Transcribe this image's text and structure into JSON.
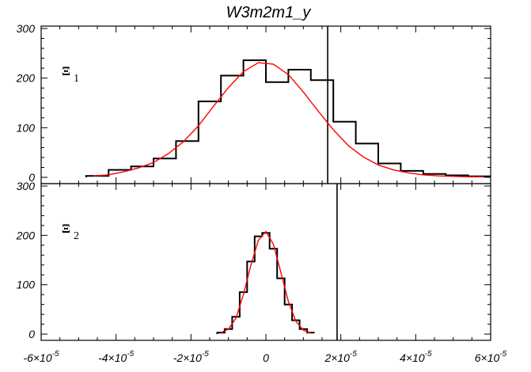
{
  "chart_data": {
    "type": "line",
    "title": "W3m2m1_y",
    "x_scale": "1e-5",
    "xlim": [
      -6,
      6
    ],
    "x_tick_labels": [
      "-6×10",
      "-4×10",
      "-2×10",
      "0",
      "2×10",
      "4×10",
      "6×10"
    ],
    "x_tick_exponent": "-5",
    "panels": [
      {
        "label": "Ξ",
        "subscript": "1",
        "ylim": [
          0,
          300
        ],
        "y_tick_labels": [
          "0",
          "100",
          "200",
          "300"
        ],
        "vline_x": 1.65,
        "series": [
          {
            "color": "#000000",
            "kind": "histogram",
            "step": 0.6,
            "x": [
              -4.5,
              -3.9,
              -3.3,
              -2.7,
              -2.1,
              -1.5,
              -0.9,
              -0.3,
              0.3,
              0.9,
              1.5,
              2.1,
              2.7,
              3.3,
              3.9,
              4.5,
              5.1,
              5.7
            ],
            "values": [
              3,
              15,
              22,
              38,
              73,
              153,
              205,
              236,
              192,
              217,
              196,
              112,
              68,
              28,
              13,
              7,
              4,
              2
            ]
          },
          {
            "color": "#ff0000",
            "kind": "curve",
            "x": [
              -4.6,
              -4.2,
              -3.8,
              -3.4,
              -3.0,
              -2.6,
              -2.2,
              -1.8,
              -1.4,
              -1.0,
              -0.6,
              -0.2,
              0.2,
              0.6,
              1.0,
              1.4,
              1.8,
              2.2,
              2.6,
              3.0,
              3.4,
              3.8,
              4.2,
              4.6,
              5.0,
              5.4,
              5.8
            ],
            "values": [
              3,
              5,
              11,
              19,
              30,
              48,
              72,
              104,
              143,
              181,
              213,
              231,
              228,
              207,
              172,
              133,
              96,
              64,
              41,
              25,
              15,
              9,
              5,
              3,
              2,
              1,
              1
            ]
          }
        ]
      },
      {
        "label": "Ξ",
        "subscript": "2",
        "ylim": [
          0,
          300
        ],
        "y_tick_labels": [
          "0",
          "100",
          "200",
          "300"
        ],
        "vline_x": 1.9,
        "series": [
          {
            "color": "#000000",
            "kind": "histogram",
            "step": 0.2,
            "x": [
              -1.2,
              -1.0,
              -0.8,
              -0.6,
              -0.4,
              -0.2,
              0.0,
              0.2,
              0.4,
              0.6,
              0.8,
              1.0,
              1.2
            ],
            "values": [
              3,
              10,
              35,
              85,
              147,
              198,
              205,
              173,
              113,
              60,
              28,
              10,
              3
            ]
          },
          {
            "color": "#ff0000",
            "kind": "curve",
            "x": [
              -1.2,
              -1.0,
              -0.8,
              -0.6,
              -0.4,
              -0.2,
              0.0,
              0.2,
              0.4,
              0.6,
              0.8,
              1.0,
              1.2
            ],
            "values": [
              3,
              10,
              32,
              80,
              140,
              190,
              208,
              182,
              125,
              66,
              26,
              8,
              2
            ]
          }
        ]
      }
    ]
  }
}
